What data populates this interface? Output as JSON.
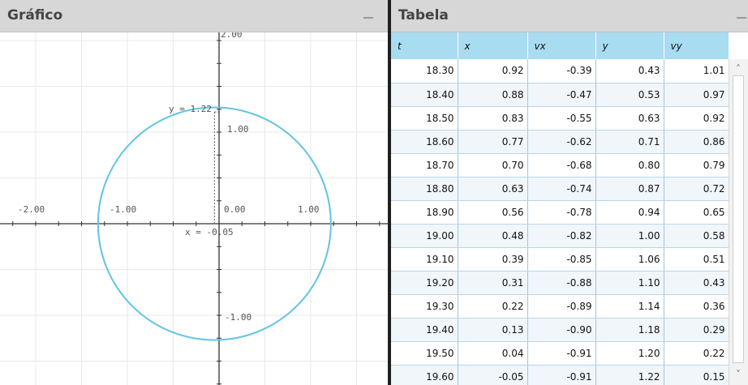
{
  "graph_panel": {
    "title": "Gráfico",
    "axis_labels": {
      "x_neg2": "-2.00",
      "x_neg1": "-1.00",
      "x_zero": "0.00",
      "x_pos1": "1.00",
      "y_pos1": "1.00",
      "y_neg1": "-1.00",
      "y_top": "2.00"
    },
    "annotations": {
      "y_max": "y = 1.22",
      "x_crossing": "x = -0.05"
    },
    "colors": {
      "curve": "#62c4e4",
      "axis": "#333333",
      "grid": "#e8e8e8",
      "guide": "#555555"
    }
  },
  "table_panel": {
    "title": "Tabela",
    "columns": [
      "t",
      "x",
      "vx",
      "y",
      "vy"
    ],
    "rows": [
      [
        "18.30",
        "0.92",
        "-0.39",
        "0.43",
        "1.01"
      ],
      [
        "18.40",
        "0.88",
        "-0.47",
        "0.53",
        "0.97"
      ],
      [
        "18.50",
        "0.83",
        "-0.55",
        "0.63",
        "0.92"
      ],
      [
        "18.60",
        "0.77",
        "-0.62",
        "0.71",
        "0.86"
      ],
      [
        "18.70",
        "0.70",
        "-0.68",
        "0.80",
        "0.79"
      ],
      [
        "18.80",
        "0.63",
        "-0.74",
        "0.87",
        "0.72"
      ],
      [
        "18.90",
        "0.56",
        "-0.78",
        "0.94",
        "0.65"
      ],
      [
        "19.00",
        "0.48",
        "-0.82",
        "1.00",
        "0.58"
      ],
      [
        "19.10",
        "0.39",
        "-0.85",
        "1.06",
        "0.51"
      ],
      [
        "19.20",
        "0.31",
        "-0.88",
        "1.10",
        "0.43"
      ],
      [
        "19.30",
        "0.22",
        "-0.89",
        "1.14",
        "0.36"
      ],
      [
        "19.40",
        "0.13",
        "-0.90",
        "1.18",
        "0.29"
      ],
      [
        "19.50",
        "0.04",
        "-0.91",
        "1.20",
        "0.22"
      ],
      [
        "19.60",
        "-0.05",
        "-0.91",
        "1.22",
        "0.15"
      ]
    ],
    "colors": {
      "header_bg": "#a8dcf0",
      "grid": "#9fc5df"
    }
  },
  "scrollbar": {
    "up_icon": "chevron-up-icon",
    "down_icon": "chevron-down-icon"
  }
}
